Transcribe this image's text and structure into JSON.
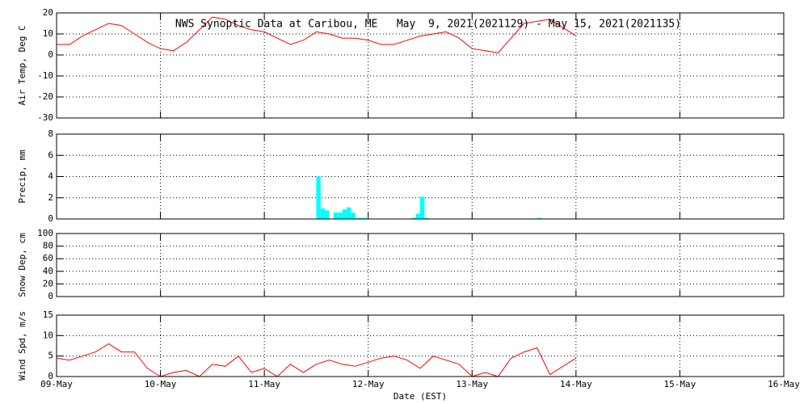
{
  "chart_data": [
    {
      "type": "line",
      "title": "NWS Synoptic Data at Caribou, ME   May  9, 2021(2021129) - May 15, 2021(2021135)",
      "ylabel": "Air Temp, Deg C",
      "ylim": [
        -30,
        20
      ],
      "yticks": [
        -30,
        -20,
        -10,
        0,
        10,
        20
      ],
      "xlim": [
        0,
        7
      ],
      "xticks": [
        0,
        1,
        2,
        3,
        4,
        5,
        6,
        7
      ],
      "grid": true,
      "series": [
        {
          "color": "#ff0000",
          "x": [
            0,
            0.125,
            0.25,
            0.375,
            0.5,
            0.625,
            0.75,
            0.875,
            1,
            1.125,
            1.25,
            1.375,
            1.5,
            1.625,
            1.75,
            1.875,
            2,
            2.125,
            2.25,
            2.375,
            2.5,
            2.625,
            2.75,
            2.875,
            3,
            3.125,
            3.25,
            3.375,
            3.5,
            3.625,
            3.75,
            3.875,
            4,
            4.125,
            4.25,
            4.375,
            4.5,
            4.625,
            4.75,
            4.875,
            5
          ],
          "values": [
            5,
            5,
            9,
            12,
            15,
            14,
            10,
            6,
            3,
            2,
            6,
            12,
            18,
            17,
            14,
            12,
            11,
            8,
            5,
            7,
            11,
            10,
            8,
            8,
            7,
            5,
            5,
            7,
            9,
            10,
            11,
            8,
            3,
            2,
            1,
            8,
            15,
            16,
            17,
            13,
            9
          ]
        }
      ]
    },
    {
      "type": "bar",
      "ylabel": "Precip, mm",
      "ylim": [
        0,
        8
      ],
      "yticks": [
        0,
        2,
        4,
        6,
        8
      ],
      "xlim": [
        0,
        7
      ],
      "xticks": [
        0,
        1,
        2,
        3,
        4,
        5,
        6,
        7
      ],
      "grid": true,
      "series": [
        {
          "color": "#00ffff",
          "x": [
            2.5,
            2.542,
            2.583,
            2.667,
            2.708,
            2.75,
            2.792,
            2.833,
            2.875,
            2.917,
            2.958,
            3.417,
            3.458,
            3.5,
            3.542,
            4.625
          ],
          "values": [
            4,
            1,
            0.8,
            0.6,
            0.6,
            0.9,
            1.1,
            0.6,
            0.1,
            0.1,
            0.1,
            0.1,
            0.5,
            2.1,
            0.1,
            0.1
          ]
        }
      ]
    },
    {
      "type": "line",
      "ylabel": "Snow Dep, cm",
      "ylim": [
        0,
        100
      ],
      "yticks": [
        0,
        20,
        40,
        60,
        80,
        100
      ],
      "xlim": [
        0,
        7
      ],
      "xticks": [
        0,
        1,
        2,
        3,
        4,
        5,
        6,
        7
      ],
      "grid": true,
      "series": []
    },
    {
      "type": "line",
      "ylabel": "Wind Spd, m/s",
      "xlabel": "Date (EST)",
      "ylim": [
        0,
        15
      ],
      "yticks": [
        0,
        5,
        10,
        15
      ],
      "xlim": [
        0,
        7
      ],
      "xticks": [
        {
          "value": 0,
          "label": "09-May"
        },
        {
          "value": 1,
          "label": "10-May"
        },
        {
          "value": 2,
          "label": "11-May"
        },
        {
          "value": 3,
          "label": "12-May"
        },
        {
          "value": 4,
          "label": "13-May"
        },
        {
          "value": 5,
          "label": "14-May"
        },
        {
          "value": 6,
          "label": "15-May"
        },
        {
          "value": 7,
          "label": "16-May"
        }
      ],
      "grid": true,
      "series": [
        {
          "color": "#ff0000",
          "x": [
            0,
            0.125,
            0.25,
            0.375,
            0.5,
            0.625,
            0.75,
            0.875,
            1,
            1.125,
            1.25,
            1.375,
            1.5,
            1.625,
            1.75,
            1.875,
            2,
            2.125,
            2.25,
            2.375,
            2.5,
            2.625,
            2.75,
            2.875,
            3,
            3.125,
            3.25,
            3.375,
            3.5,
            3.625,
            3.75,
            3.875,
            4,
            4.125,
            4.25,
            4.375,
            4.5,
            4.625,
            4.75,
            4.875,
            5
          ],
          "values": [
            4.5,
            4,
            5,
            6,
            8,
            6,
            6,
            2,
            0,
            1,
            1.5,
            0,
            3,
            2.5,
            5,
            1,
            2,
            0,
            3,
            1,
            3,
            4,
            3,
            2.5,
            3.5,
            4.5,
            5,
            4,
            2,
            5,
            4,
            3,
            0,
            1,
            0,
            4.5,
            6,
            7,
            0.5,
            2.5,
            4.5
          ]
        }
      ]
    }
  ]
}
